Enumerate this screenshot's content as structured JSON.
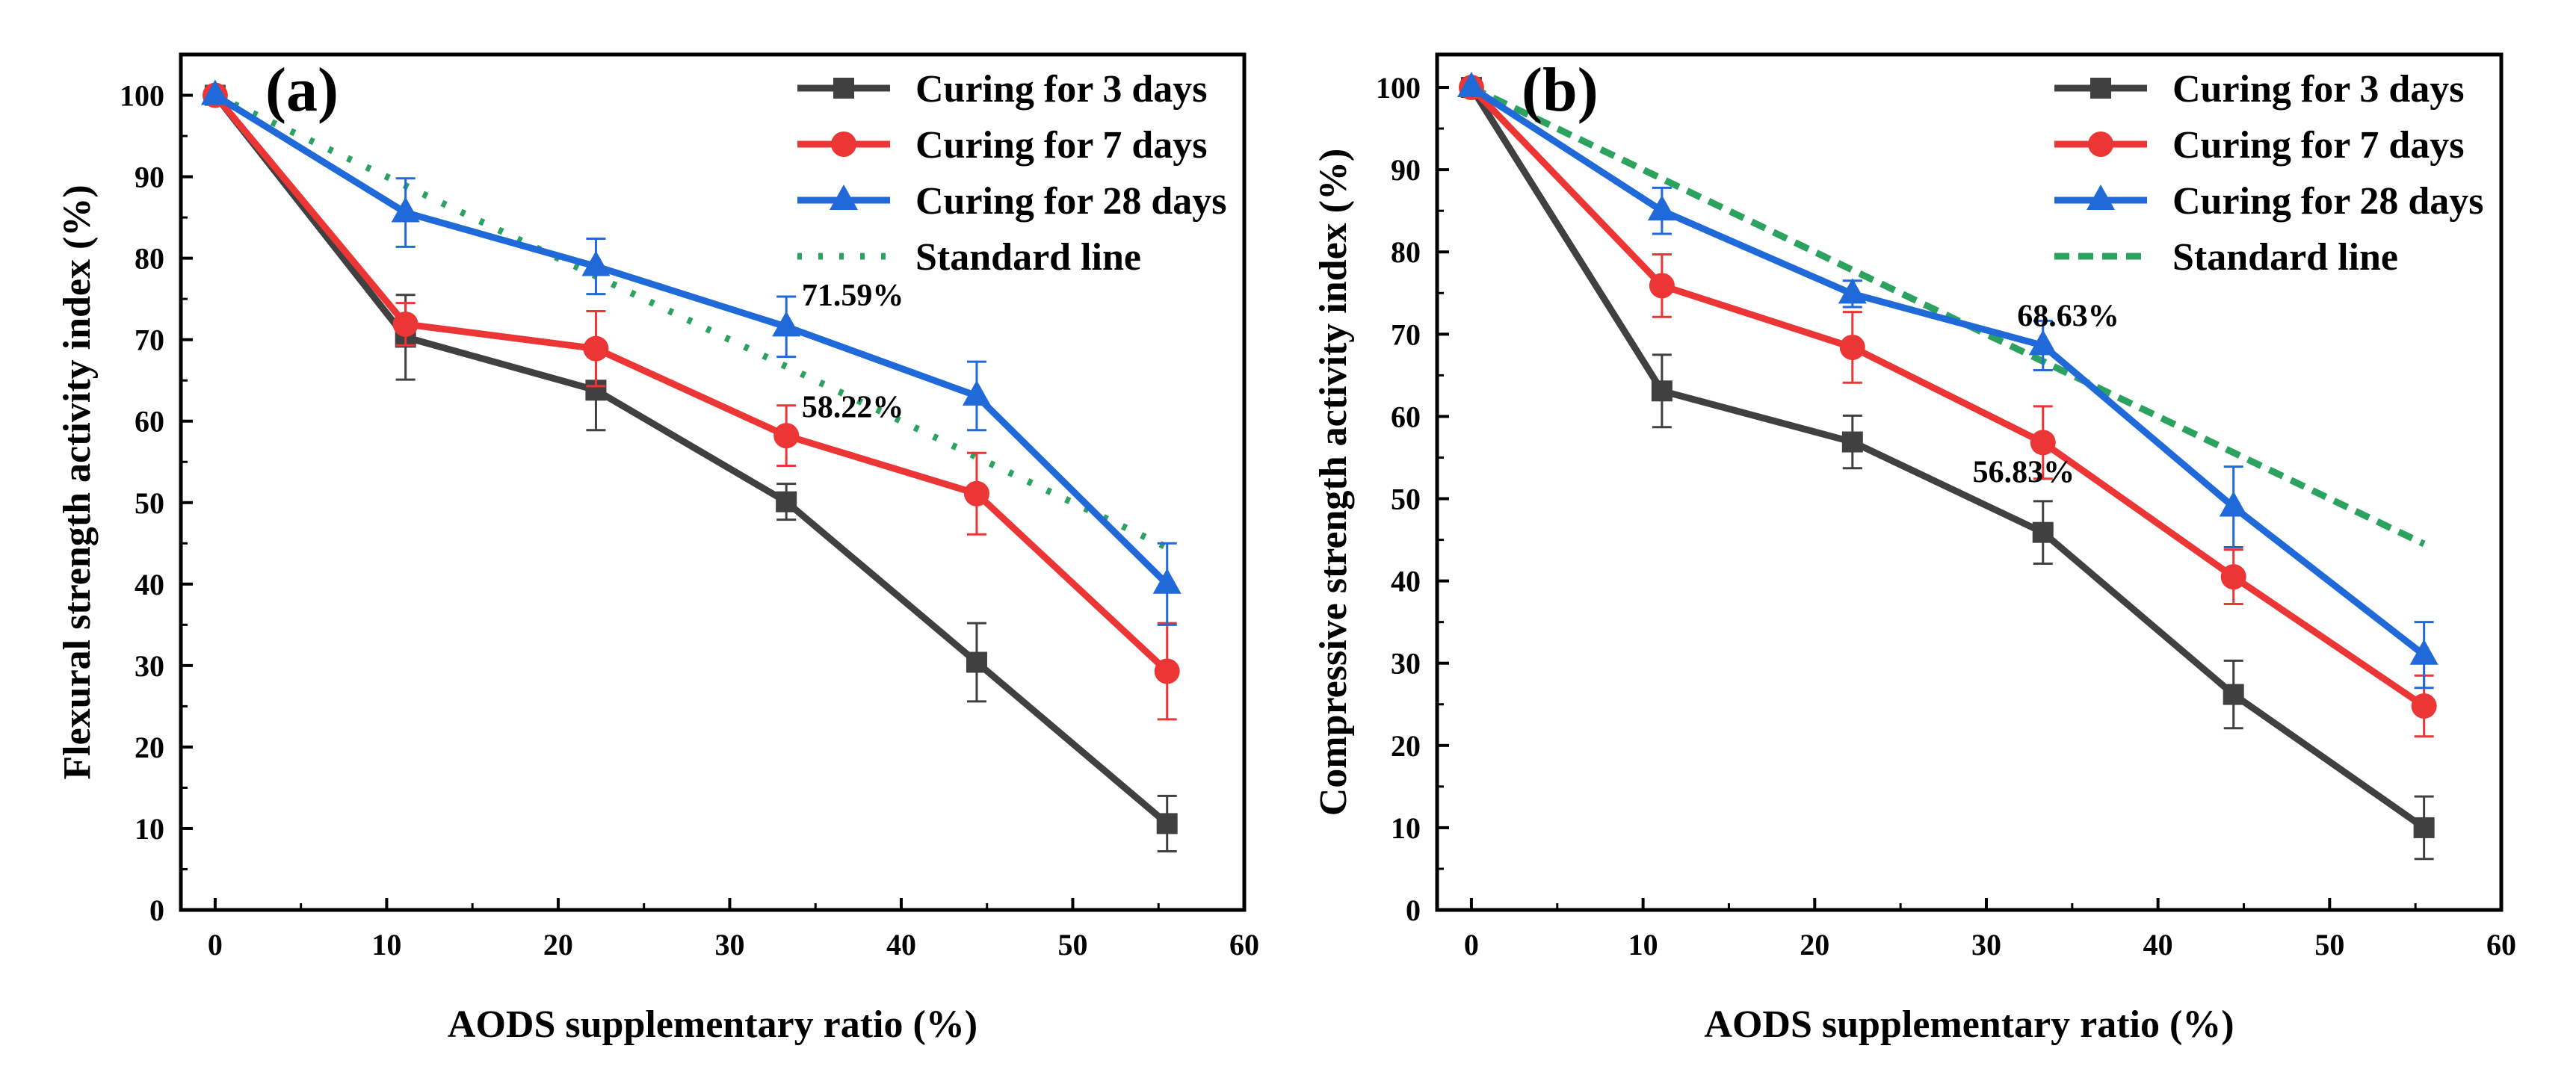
{
  "chart_data": [
    {
      "type": "line",
      "panel_label": "(a)",
      "xlabel": "AODS supplementary ratio (%)",
      "ylabel": "Flexural strength activity index (%)",
      "xlim": [
        -2,
        60
      ],
      "ylim": [
        0,
        105
      ],
      "xticks": [
        "0",
        "10",
        "20",
        "30",
        "40",
        "50",
        "60"
      ],
      "yticks": [
        "0",
        "10",
        "20",
        "30",
        "40",
        "50",
        "60",
        "70",
        "80",
        "90",
        "100"
      ],
      "x": [
        0,
        11.1,
        22.2,
        33.3,
        44.4,
        55.5
      ],
      "series": [
        {
          "name": "Curing for 3 days",
          "marker": "square",
          "color": "#404040",
          "values": [
            100,
            70.3,
            63.8,
            50.1,
            30.4,
            10.6
          ],
          "errors": [
            0,
            5.2,
            4.9,
            2.2,
            4.8,
            3.4
          ]
        },
        {
          "name": "Curing for 7 days",
          "marker": "circle",
          "color": "#ec3535",
          "values": [
            100,
            71.9,
            68.9,
            58.22,
            51.1,
            29.3
          ],
          "errors": [
            0,
            2.6,
            4.6,
            3.7,
            5.0,
            5.9
          ]
        },
        {
          "name": "Curing for 28 days",
          "marker": "triangle",
          "color": "#1f6ad8",
          "values": [
            100,
            85.6,
            79.0,
            71.59,
            63.1,
            40.0
          ],
          "errors": [
            0,
            4.2,
            3.4,
            3.7,
            4.2,
            5.0
          ]
        }
      ],
      "standard_line": {
        "name": "Standard line",
        "style": "dotted",
        "color": "#2ca25f",
        "x": [
          0,
          55.5
        ],
        "values": [
          100,
          44.5
        ]
      },
      "annotations": [
        {
          "text": "71.59%",
          "x": 34.2,
          "y": 74.2
        },
        {
          "text": "58.22%",
          "x": 34.2,
          "y": 60.5
        }
      ],
      "legend_position": "top-right"
    },
    {
      "type": "line",
      "panel_label": "(b)",
      "xlabel": "AODS supplementary ratio (%)",
      "ylabel": "Compressive strength activity index (%)",
      "xlim": [
        -2,
        60
      ],
      "ylim": [
        0,
        104
      ],
      "xticks": [
        "0",
        "10",
        "20",
        "30",
        "40",
        "50",
        "60"
      ],
      "yticks": [
        "0",
        "10",
        "20",
        "30",
        "40",
        "50",
        "60",
        "70",
        "80",
        "90",
        "100"
      ],
      "x": [
        0,
        11.1,
        22.2,
        33.3,
        44.4,
        55.5
      ],
      "series": [
        {
          "name": "Curing for 3 days",
          "marker": "square",
          "color": "#404040",
          "values": [
            100,
            63.1,
            56.9,
            45.9,
            26.2,
            10.0
          ],
          "errors": [
            0,
            4.4,
            3.2,
            3.8,
            4.1,
            3.8
          ]
        },
        {
          "name": "Curing for 7 days",
          "marker": "circle",
          "color": "#ec3535",
          "values": [
            100,
            75.9,
            68.4,
            56.83,
            40.5,
            24.8
          ],
          "errors": [
            0,
            3.8,
            4.3,
            4.4,
            3.3,
            3.7
          ]
        },
        {
          "name": "Curing for 28 days",
          "marker": "triangle",
          "color": "#1f6ad8",
          "values": [
            100,
            85.0,
            74.9,
            68.63,
            49.0,
            31.0
          ],
          "errors": [
            0,
            2.8,
            1.6,
            3.0,
            4.9,
            4.0
          ]
        }
      ],
      "standard_line": {
        "name": "Standard line",
        "style": "dashed",
        "color": "#2ca25f",
        "x": [
          0,
          55.5
        ],
        "values": [
          100,
          44.5
        ]
      },
      "annotations": [
        {
          "text": "68.63%",
          "x": 31.8,
          "y": 71.0
        },
        {
          "text": "56.83%",
          "x": 29.2,
          "y": 52.0
        }
      ],
      "legend_position": "top-right"
    }
  ]
}
